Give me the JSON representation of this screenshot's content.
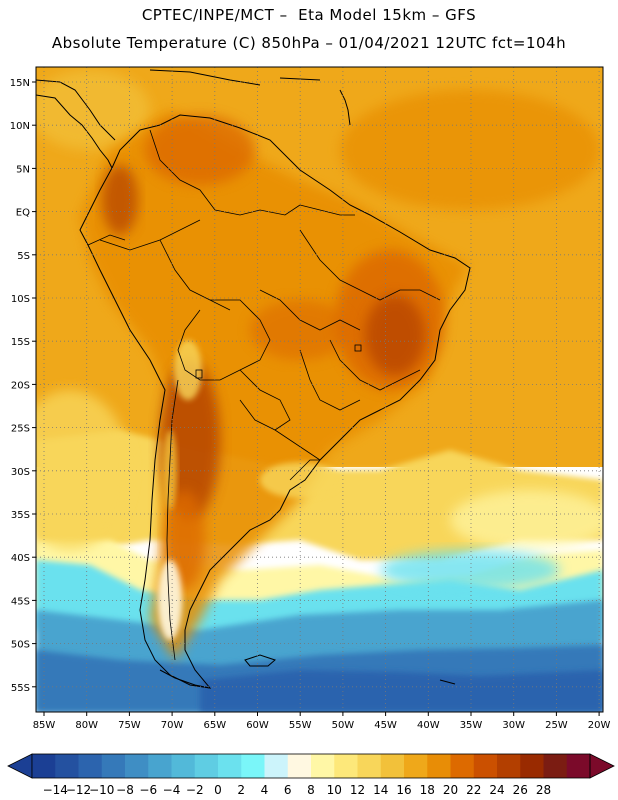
{
  "header": {
    "line1": "CPTEC/INPE/MCT –  Eta Model 15km – GFS",
    "line2": "Absolute Temperature (C) 850hPa – 01/04/2021 12UTC fct=104h"
  },
  "axes": {
    "lat_labels": [
      "15N",
      "10N",
      "5N",
      "EQ",
      "5S",
      "10S",
      "15S",
      "20S",
      "25S",
      "30S",
      "35S",
      "40S",
      "45S",
      "50S",
      "55S"
    ],
    "lon_labels": [
      "85W",
      "80W",
      "75W",
      "70W",
      "65W",
      "60W",
      "55W",
      "50W",
      "45W",
      "40W",
      "35W",
      "30W",
      "25W",
      "20W"
    ]
  },
  "colorbar": {
    "labels": [
      "-14",
      "-12",
      "-10",
      "-8",
      "-6",
      "-4",
      "-2",
      "0",
      "2",
      "4",
      "6",
      "8",
      "10",
      "12",
      "14",
      "16",
      "18",
      "20",
      "22",
      "24",
      "26",
      "28"
    ],
    "colors": [
      "#1b3f94",
      "#2451a0",
      "#2c64ae",
      "#3579b9",
      "#3f8ec4",
      "#48a4cf",
      "#52b9d9",
      "#5fcde3",
      "#6be1ee",
      "#7af6f9",
      "#ccf4fb",
      "#fff8e1",
      "#fff7a6",
      "#fde87a",
      "#f8d65a",
      "#f2c13a",
      "#efa81a",
      "#e88d06",
      "#dd6a00",
      "#cb5000",
      "#b33f00",
      "#992a00",
      "#7b1c12",
      "#7b0a2a"
    ]
  },
  "palette": {
    "ocean_deep": "#2f64ab",
    "ocean_cold": "#48a4cf",
    "ocean_cool": "#6be1ee",
    "ocean_mild": "#fff7a6",
    "ocean_warm": "#f8d65a",
    "ocean_hot": "#efa81a",
    "land_base": "#e88d06",
    "land_hot": "#dd6a00",
    "land_hottest": "#b33f00",
    "andes_cold": "#fff8e1"
  }
}
